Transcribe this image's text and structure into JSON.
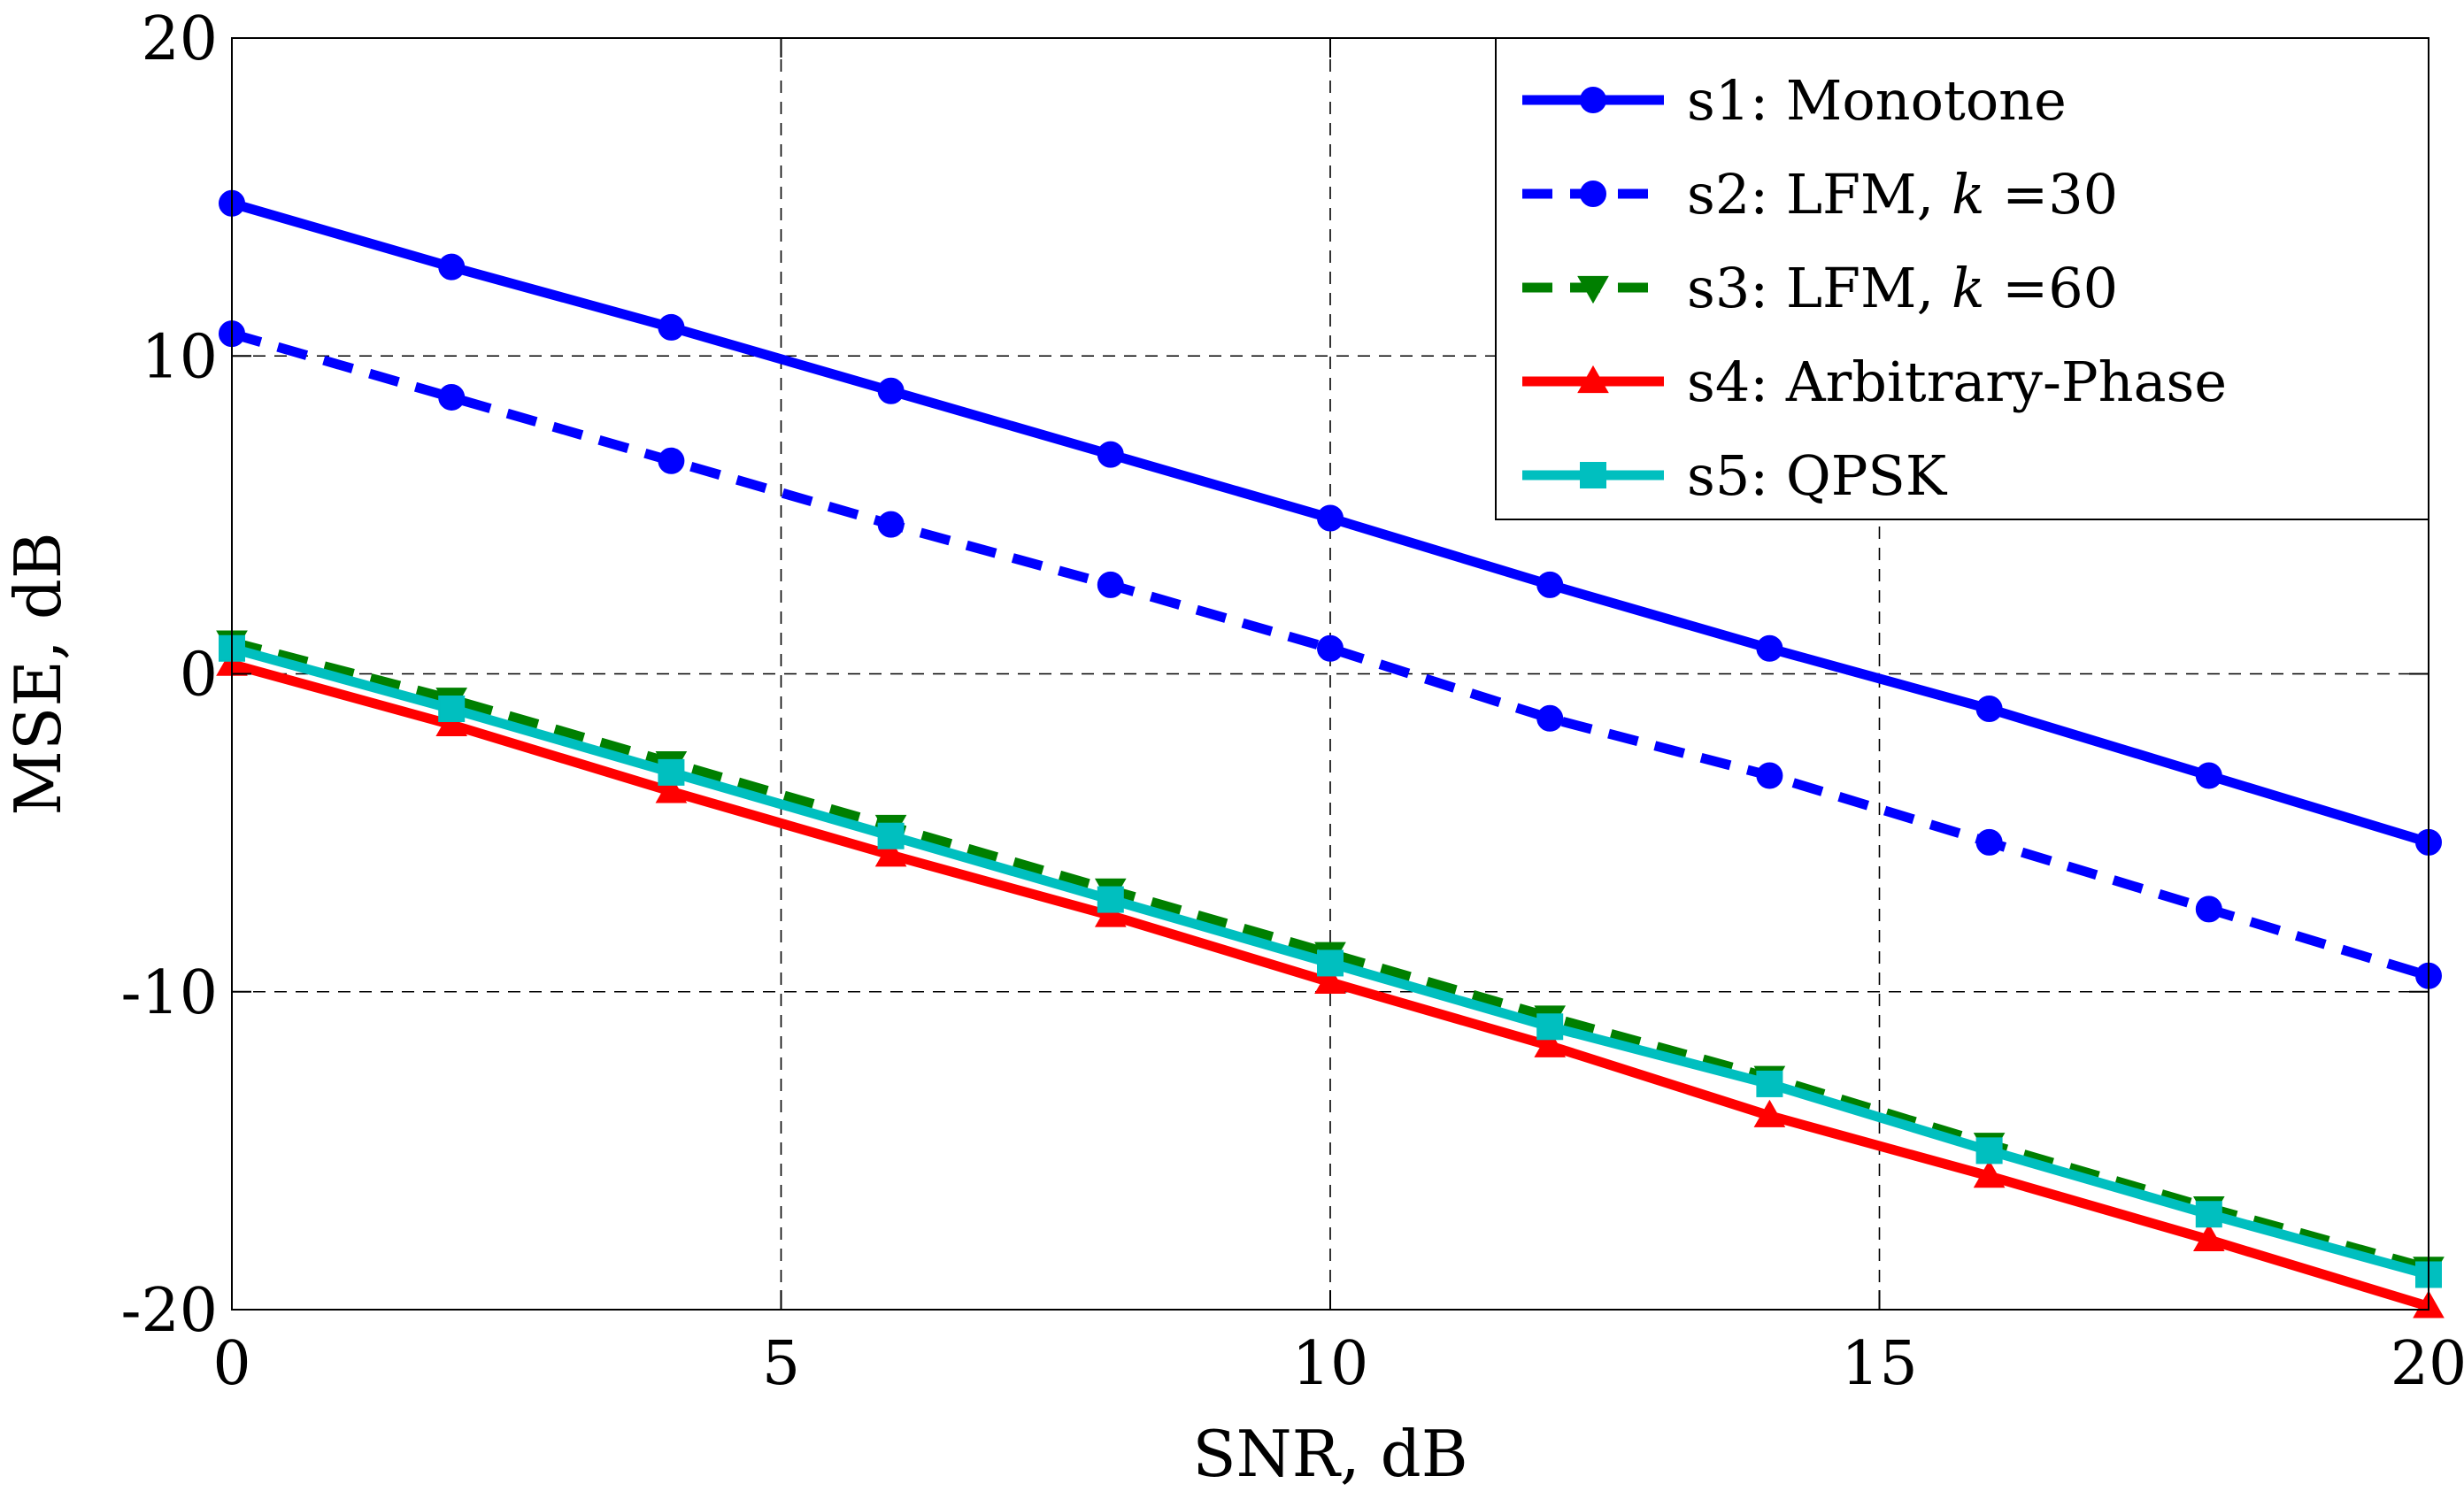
{
  "chart_data": {
    "type": "line",
    "title": "",
    "xlabel": "SNR, dB",
    "ylabel": "MSE, dB",
    "xlim": [
      0,
      20
    ],
    "ylim": [
      -20,
      20
    ],
    "xticks": [
      0,
      5,
      10,
      15,
      20
    ],
    "yticks": [
      -20,
      -10,
      0,
      10,
      20
    ],
    "xtick_labels": [
      "0",
      "5",
      "10",
      "15",
      "20"
    ],
    "ytick_labels": [
      "-20",
      "-10",
      "0",
      "10",
      "20"
    ],
    "grid": true,
    "legend_position": "top-right",
    "x": [
      0,
      2,
      4,
      6,
      8,
      10,
      12,
      14,
      16,
      18,
      20
    ],
    "series": [
      {
        "name": "s1: Monotone",
        "label_prefix": "s1: Monotone",
        "label_italic": "",
        "label_suffix": "",
        "color": "#0000ff",
        "line_style": "solid",
        "marker": "circle",
        "values": [
          14.8,
          12.8,
          10.9,
          8.9,
          6.9,
          4.9,
          2.8,
          0.8,
          -1.1,
          -3.2,
          -5.3
        ]
      },
      {
        "name": "s2: LFM, k =30",
        "label_prefix": "s2: LFM, ",
        "label_italic": "k",
        "label_suffix": " =30",
        "color": "#0000ff",
        "line_style": "dashed",
        "marker": "circle",
        "values": [
          10.7,
          8.7,
          6.7,
          4.7,
          2.8,
          0.8,
          -1.4,
          -3.2,
          -5.3,
          -7.4,
          -9.5
        ]
      },
      {
        "name": "s3: LFM, k =60",
        "label_prefix": "s3: LFM, ",
        "label_italic": "k",
        "label_suffix": " =60",
        "color": "#007f00",
        "line_style": "dashed",
        "marker": "triangle-down",
        "values": [
          1.0,
          -0.8,
          -2.8,
          -4.8,
          -6.8,
          -8.8,
          -10.8,
          -12.7,
          -14.8,
          -16.8,
          -18.7
        ]
      },
      {
        "name": "s4: Arbitrary-Phase",
        "label_prefix": "s4: Arbitrary-Phase",
        "label_italic": "",
        "label_suffix": "",
        "color": "#ff0000",
        "line_style": "solid",
        "marker": "triangle-up",
        "values": [
          0.3,
          -1.6,
          -3.7,
          -5.7,
          -7.6,
          -9.7,
          -11.7,
          -13.9,
          -15.8,
          -17.8,
          -19.9
        ]
      },
      {
        "name": "s5: QPSK",
        "label_prefix": "s5: QPSK",
        "label_italic": "",
        "label_suffix": "",
        "color": "#00bfbf",
        "line_style": "solid",
        "marker": "square",
        "values": [
          0.8,
          -1.1,
          -3.1,
          -5.1,
          -7.1,
          -9.1,
          -11.1,
          -12.9,
          -15.0,
          -17.0,
          -18.9
        ]
      }
    ]
  }
}
